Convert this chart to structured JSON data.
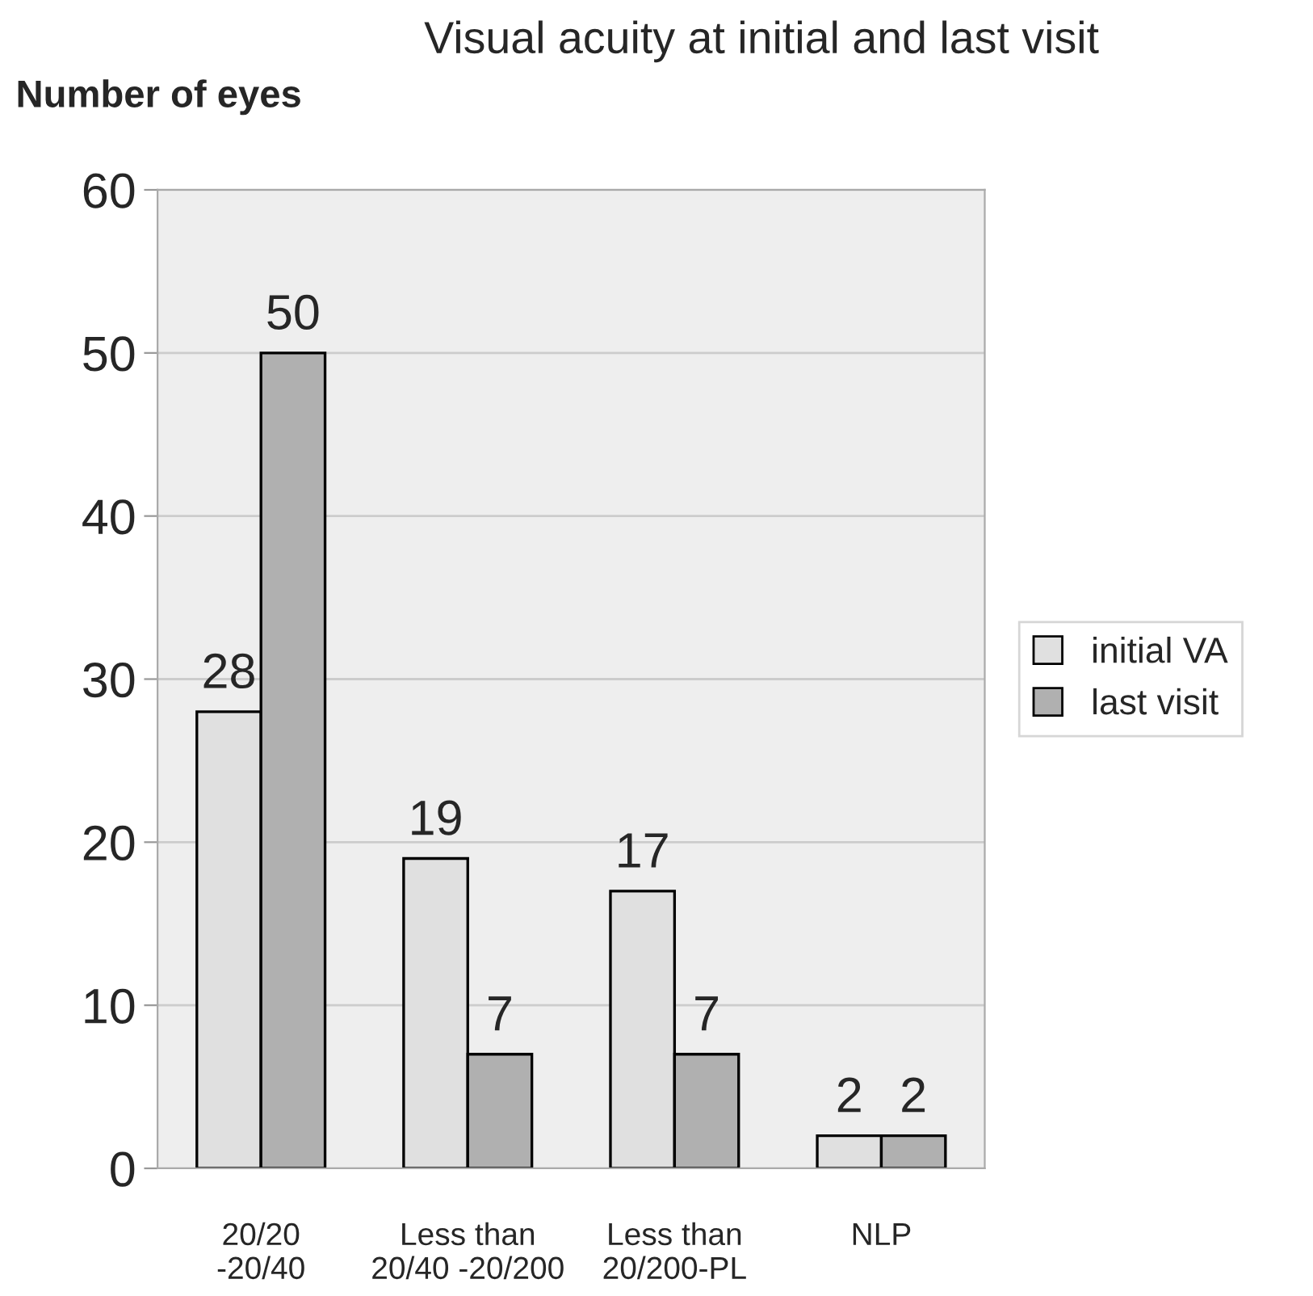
{
  "chart_data": {
    "type": "bar",
    "title": "Visual acuity at initial and last visit",
    "ylabel": "Number of eyes",
    "categories": [
      "20/20\n-20/40",
      "Less than\n20/40 -20/200",
      "Less than\n20/200-PL",
      "NLP"
    ],
    "series": [
      {
        "name": "initial VA",
        "color": "#e0e0e0",
        "values": [
          28,
          19,
          17,
          2
        ]
      },
      {
        "name": "last visit",
        "color": "#b0b0b0",
        "values": [
          50,
          7,
          7,
          2
        ]
      }
    ],
    "ylim": [
      0,
      60
    ],
    "yticks": [
      0,
      10,
      20,
      30,
      40,
      50,
      60
    ],
    "grid": "y",
    "legend": "right",
    "data_labels": true
  }
}
